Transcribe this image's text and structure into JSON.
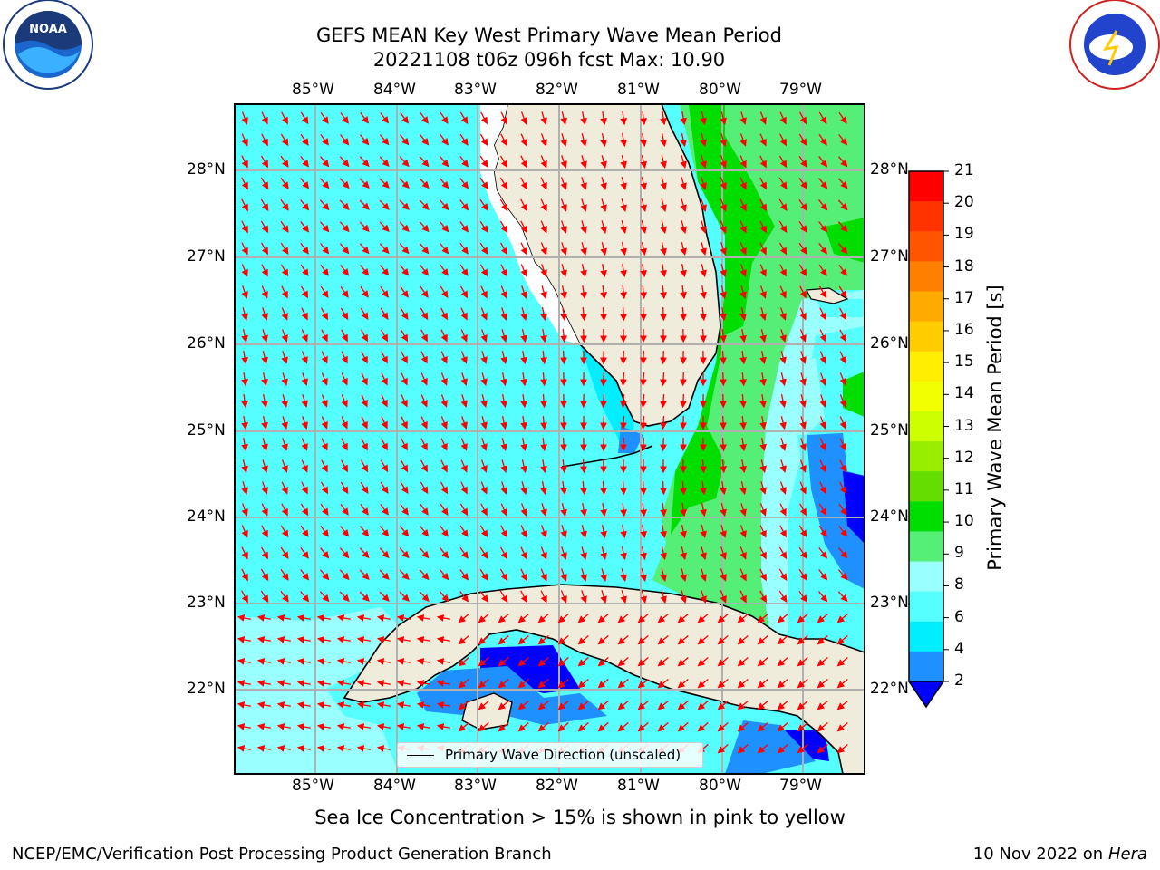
{
  "title_line1": "GEFS MEAN Key West Primary Wave Mean Period",
  "title_line2": "20221108 t06z 096h fcst   Max: 10.90",
  "lon_labels": [
    "85°W",
    "84°W",
    "83°W",
    "82°W",
    "81°W",
    "80°W",
    "79°W"
  ],
  "lat_labels": [
    "28°N",
    "27°N",
    "26°N",
    "25°N",
    "24°N",
    "23°N",
    "22°N"
  ],
  "legend_label": "Primary Wave Direction (unscaled)",
  "colorbar": {
    "title": "Primary Wave Mean Period [s]",
    "ticks": [
      "21",
      "20",
      "19",
      "18",
      "17",
      "16",
      "15",
      "14",
      "13",
      "12",
      "11",
      "10",
      "9",
      "8",
      "6",
      "4",
      "2"
    ],
    "colors": [
      "#ff0000",
      "#ff3300",
      "#ff5500",
      "#ff8000",
      "#ffaa00",
      "#ffcc00",
      "#ffee00",
      "#f2ff00",
      "#ccff00",
      "#99ee00",
      "#66dd00",
      "#00dd00",
      "#55ee77",
      "#99ffff",
      "#55ffff",
      "#00eeff",
      "#1e90ff",
      "#0000ff"
    ]
  },
  "subtitle": "Sea Ice Concentration > 15% is shown in pink to yellow",
  "footer_left": "NCEP/EMC/Verification Post Processing Product Generation Branch",
  "footer_right_date": "10 Nov 2022 on",
  "footer_right_host": "Hera",
  "logos": {
    "left": "noaa-logo",
    "right": "nws-logo"
  }
}
